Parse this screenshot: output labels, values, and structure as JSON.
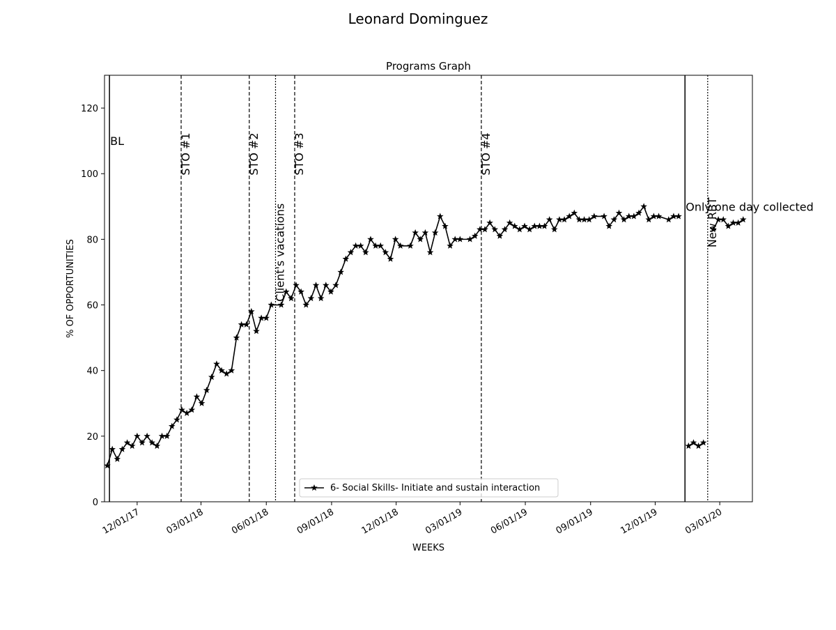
{
  "chart_data": {
    "type": "line",
    "suptitle": "Leonard  Dominguez",
    "title": "Programs Graph",
    "xlabel": "WEEKS",
    "ylabel": "% OF OPPORTUNITIES",
    "ylim": [
      0,
      130
    ],
    "xlim": [
      "2017-10-16",
      "2020-04-16"
    ],
    "yticks": [
      0,
      20,
      40,
      60,
      80,
      100,
      120
    ],
    "xticks": [
      {
        "date": "2017-12-01",
        "label": "12/01/17"
      },
      {
        "date": "2018-03-01",
        "label": "03/01/18"
      },
      {
        "date": "2018-06-01",
        "label": "06/01/18"
      },
      {
        "date": "2018-09-01",
        "label": "09/01/18"
      },
      {
        "date": "2018-12-01",
        "label": "12/01/18"
      },
      {
        "date": "2019-03-01",
        "label": "03/01/19"
      },
      {
        "date": "2019-06-01",
        "label": "06/01/19"
      },
      {
        "date": "2019-09-01",
        "label": "09/01/19"
      },
      {
        "date": "2019-12-01",
        "label": "12/01/19"
      },
      {
        "date": "2020-03-01",
        "label": "03/01/20"
      }
    ],
    "grid": false,
    "legend_position": "lower center",
    "series": [
      {
        "name": "6- Social Skills- Initiate and sustain interaction",
        "color": "#000000",
        "marker": "star",
        "segments": [
          [
            [
              "2017-10-20",
              11
            ],
            [
              "2017-10-27",
              16
            ],
            [
              "2017-11-03",
              13
            ],
            [
              "2017-11-10",
              16
            ],
            [
              "2017-11-17",
              18
            ],
            [
              "2017-11-24",
              17
            ],
            [
              "2017-12-01",
              20
            ],
            [
              "2017-12-08",
              18
            ],
            [
              "2017-12-15",
              20
            ],
            [
              "2017-12-22",
              18
            ],
            [
              "2017-12-29",
              17
            ],
            [
              "2018-01-05",
              20
            ],
            [
              "2018-01-12",
              20
            ],
            [
              "2018-01-19",
              23
            ],
            [
              "2018-01-26",
              25
            ],
            [
              "2018-02-02",
              28
            ],
            [
              "2018-02-09",
              27
            ],
            [
              "2018-02-16",
              28
            ],
            [
              "2018-02-23",
              32
            ],
            [
              "2018-03-02",
              30
            ],
            [
              "2018-03-09",
              34
            ],
            [
              "2018-03-16",
              38
            ],
            [
              "2018-03-23",
              42
            ],
            [
              "2018-03-30",
              40
            ],
            [
              "2018-04-06",
              39
            ],
            [
              "2018-04-13",
              40
            ],
            [
              "2018-04-20",
              50
            ],
            [
              "2018-04-27",
              54
            ],
            [
              "2018-05-04",
              54
            ],
            [
              "2018-05-11",
              58
            ],
            [
              "2018-05-18",
              52
            ],
            [
              "2018-05-25",
              56
            ],
            [
              "2018-06-01",
              56
            ],
            [
              "2018-06-08",
              60
            ],
            [
              "2018-06-22",
              60
            ],
            [
              "2018-06-29",
              64
            ],
            [
              "2018-07-06",
              62
            ],
            [
              "2018-07-13",
              66
            ],
            [
              "2018-07-20",
              64
            ],
            [
              "2018-07-27",
              60
            ],
            [
              "2018-08-03",
              62
            ],
            [
              "2018-08-10",
              66
            ],
            [
              "2018-08-17",
              62
            ],
            [
              "2018-08-24",
              66
            ],
            [
              "2018-08-31",
              64
            ],
            [
              "2018-09-07",
              66
            ],
            [
              "2018-09-14",
              70
            ],
            [
              "2018-09-21",
              74
            ],
            [
              "2018-09-28",
              76
            ],
            [
              "2018-10-05",
              78
            ],
            [
              "2018-10-12",
              78
            ],
            [
              "2018-10-19",
              76
            ],
            [
              "2018-10-26",
              80
            ],
            [
              "2018-11-02",
              78
            ],
            [
              "2018-11-09",
              78
            ],
            [
              "2018-11-16",
              76
            ],
            [
              "2018-11-23",
              74
            ],
            [
              "2018-11-30",
              80
            ],
            [
              "2018-12-07",
              78
            ],
            [
              "2018-12-21",
              78
            ],
            [
              "2018-12-28",
              82
            ],
            [
              "2019-01-04",
              80
            ],
            [
              "2019-01-11",
              82
            ],
            [
              "2019-01-18",
              76
            ],
            [
              "2019-01-25",
              82
            ],
            [
              "2019-02-01",
              87
            ],
            [
              "2019-02-08",
              84
            ],
            [
              "2019-02-15",
              78
            ],
            [
              "2019-02-22",
              80
            ],
            [
              "2019-03-01",
              80
            ],
            [
              "2019-03-15",
              80
            ],
            [
              "2019-03-22",
              81
            ],
            [
              "2019-03-29",
              83
            ],
            [
              "2019-04-05",
              83
            ],
            [
              "2019-04-12",
              85
            ],
            [
              "2019-04-19",
              83
            ],
            [
              "2019-04-26",
              81
            ],
            [
              "2019-05-03",
              83
            ],
            [
              "2019-05-10",
              85
            ],
            [
              "2019-05-17",
              84
            ],
            [
              "2019-05-24",
              83
            ],
            [
              "2019-05-31",
              84
            ],
            [
              "2019-06-07",
              83
            ],
            [
              "2019-06-14",
              84
            ],
            [
              "2019-06-21",
              84
            ],
            [
              "2019-06-28",
              84
            ],
            [
              "2019-07-05",
              86
            ],
            [
              "2019-07-12",
              83
            ],
            [
              "2019-07-19",
              86
            ],
            [
              "2019-07-26",
              86
            ],
            [
              "2019-08-02",
              87
            ],
            [
              "2019-08-09",
              88
            ],
            [
              "2019-08-16",
              86
            ],
            [
              "2019-08-23",
              86
            ],
            [
              "2019-08-30",
              86
            ],
            [
              "2019-09-06",
              87
            ],
            [
              "2019-09-20",
              87
            ],
            [
              "2019-09-27",
              84
            ],
            [
              "2019-10-04",
              86
            ],
            [
              "2019-10-11",
              88
            ],
            [
              "2019-10-18",
              86
            ],
            [
              "2019-10-25",
              87
            ],
            [
              "2019-11-01",
              87
            ],
            [
              "2019-11-08",
              88
            ],
            [
              "2019-11-15",
              90
            ],
            [
              "2019-11-22",
              86
            ],
            [
              "2019-11-29",
              87
            ],
            [
              "2019-12-06",
              87
            ],
            [
              "2019-12-20",
              86
            ],
            [
              "2019-12-27",
              87
            ],
            [
              "2020-01-03",
              87
            ]
          ],
          [
            [
              "2020-01-17",
              17
            ],
            [
              "2020-01-24",
              18
            ],
            [
              "2020-01-31",
              17
            ],
            [
              "2020-02-07",
              18
            ]
          ],
          [
            [
              "2020-02-21",
              83
            ],
            [
              "2020-02-28",
              86
            ],
            [
              "2020-03-06",
              86
            ],
            [
              "2020-03-13",
              84
            ],
            [
              "2020-03-20",
              85
            ],
            [
              "2020-03-27",
              85
            ],
            [
              "2020-04-03",
              86
            ]
          ]
        ]
      }
    ],
    "phase_lines": [
      {
        "date": "2017-10-23",
        "style": "solid",
        "label": "BL",
        "orientation": "horizontal"
      },
      {
        "date": "2018-02-01",
        "style": "dashed",
        "label": "STO #1",
        "orientation": "vertical"
      },
      {
        "date": "2018-05-08",
        "style": "dashed",
        "label": "STO #2",
        "orientation": "vertical"
      },
      {
        "date": "2018-06-14",
        "style": "dotted",
        "label": "Client's vacations",
        "orientation": "vertical"
      },
      {
        "date": "2018-07-11",
        "style": "dashed",
        "label": "STO #3",
        "orientation": "vertical"
      },
      {
        "date": "2019-03-31",
        "style": "dashed",
        "label": "STO #4",
        "orientation": "vertical"
      },
      {
        "date": "2020-01-12",
        "style": "solid",
        "label": "Only one day collected",
        "orientation": "horizontal"
      },
      {
        "date": "2020-02-13",
        "style": "dotted",
        "label": "New RBT",
        "orientation": "vertical"
      }
    ]
  }
}
